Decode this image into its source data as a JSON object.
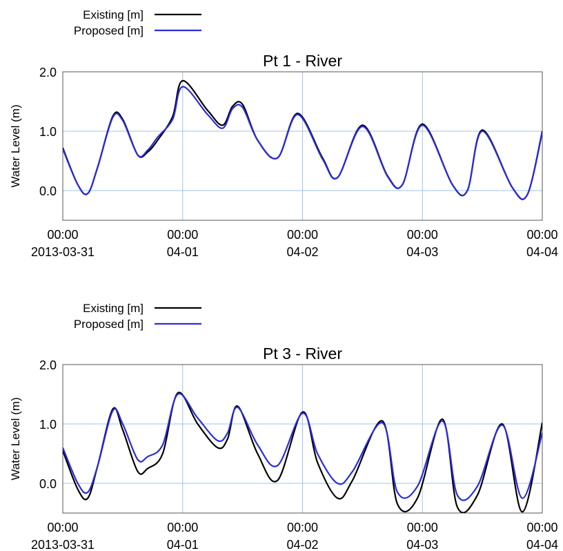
{
  "colors": {
    "existing": "#000000",
    "proposed": "#2a2ae0",
    "grid": "#9ec4ee",
    "frame": "#555555"
  },
  "chart_data": [
    {
      "type": "line",
      "title": "Pt 1 - River",
      "ylabel": "Water Level (m)",
      "xlabel": "",
      "ylim": [
        -0.5,
        2.0
      ],
      "xlim": [
        "2013-03-31 00:00",
        "2013-04-04 00:00"
      ],
      "yticks": [
        0.0,
        1.0,
        2.0
      ],
      "ytick_labels": [
        "0.0",
        "1.0",
        "2.0"
      ],
      "xticks": [
        "2013-03-31 00:00",
        "2013-04-01 00:00",
        "2013-04-02 00:00",
        "2013-04-03 00:00",
        "2013-04-04 00:00"
      ],
      "xtick_labels": [
        [
          "00:00",
          "2013-03-31"
        ],
        [
          "00:00",
          "04-01"
        ],
        [
          "00:00",
          "04-02"
        ],
        [
          "00:00",
          "04-03"
        ],
        [
          "00:00",
          "04-04"
        ]
      ],
      "grid": true,
      "legend_position": "top-left, outside above plot",
      "legend": [
        "Existing    [m]",
        "Proposed [m]"
      ],
      "series": [
        {
          "name": "Existing    [m]",
          "x": [
            "2013-03-31 00:00",
            "2013-03-31 03:00",
            "2013-03-31 05:00",
            "2013-03-31 07:00",
            "2013-03-31 10:00",
            "2013-03-31 12:00",
            "2013-03-31 15:00",
            "2013-03-31 17:00",
            "2013-03-31 19:00",
            "2013-03-31 22:00",
            "2013-04-01 00:00",
            "2013-04-01 05:00",
            "2013-04-01 08:00",
            "2013-04-01 10:00",
            "2013-04-01 12:00",
            "2013-04-01 15:00",
            "2013-04-01 19:00",
            "2013-04-01 23:00",
            "2013-04-02 04:00",
            "2013-04-02 07:00",
            "2013-04-02 12:00",
            "2013-04-02 17:00",
            "2013-04-02 20:00",
            "2013-04-03 00:00",
            "2013-04-03 06:00",
            "2013-04-03 09:00",
            "2013-04-03 12:00",
            "2013-04-03 18:00",
            "2013-04-03 21:00",
            "2013-04-04 00:00"
          ],
          "y": [
            0.72,
            0.1,
            -0.05,
            0.4,
            1.25,
            1.2,
            0.6,
            0.65,
            0.85,
            1.25,
            1.85,
            1.35,
            1.1,
            1.42,
            1.45,
            0.85,
            0.55,
            1.3,
            0.55,
            0.22,
            1.1,
            0.25,
            0.1,
            1.12,
            0.1,
            0.0,
            1.02,
            0.05,
            -0.07,
            1.0
          ]
        },
        {
          "name": "Proposed [m]",
          "x": [
            "2013-03-31 00:00",
            "2013-03-31 03:00",
            "2013-03-31 05:00",
            "2013-03-31 07:00",
            "2013-03-31 10:00",
            "2013-03-31 12:00",
            "2013-03-31 15:00",
            "2013-03-31 17:00",
            "2013-03-31 19:00",
            "2013-03-31 22:00",
            "2013-04-01 00:00",
            "2013-04-01 05:00",
            "2013-04-01 08:00",
            "2013-04-01 10:00",
            "2013-04-01 12:00",
            "2013-04-01 15:00",
            "2013-04-01 19:00",
            "2013-04-01 23:00",
            "2013-04-02 04:00",
            "2013-04-02 07:00",
            "2013-04-02 12:00",
            "2013-04-02 17:00",
            "2013-04-02 20:00",
            "2013-04-03 00:00",
            "2013-04-03 06:00",
            "2013-04-03 09:00",
            "2013-04-03 12:00",
            "2013-04-03 18:00",
            "2013-04-03 21:00",
            "2013-04-04 00:00"
          ],
          "y": [
            0.7,
            0.1,
            -0.05,
            0.4,
            1.23,
            1.18,
            0.6,
            0.68,
            0.9,
            1.2,
            1.75,
            1.28,
            1.05,
            1.38,
            1.4,
            0.85,
            0.55,
            1.28,
            0.53,
            0.22,
            1.08,
            0.24,
            0.1,
            1.1,
            0.1,
            0.0,
            1.0,
            0.05,
            -0.07,
            0.98
          ]
        }
      ]
    },
    {
      "type": "line",
      "title": "Pt 3 - River",
      "ylabel": "Water Level (m)",
      "xlabel": "",
      "ylim": [
        -0.5,
        2.0
      ],
      "xlim": [
        "2013-03-31 00:00",
        "2013-04-04 00:00"
      ],
      "yticks": [
        0.0,
        1.0,
        2.0
      ],
      "ytick_labels": [
        "0.0",
        "1.0",
        "2.0"
      ],
      "xticks": [
        "2013-03-31 00:00",
        "2013-04-01 00:00",
        "2013-04-02 00:00",
        "2013-04-03 00:00",
        "2013-04-04 00:00"
      ],
      "xtick_labels": [
        [
          "00:00",
          "2013-03-31"
        ],
        [
          "00:00",
          "04-01"
        ],
        [
          "00:00",
          "04-02"
        ],
        [
          "00:00",
          "04-03"
        ],
        [
          "00:00",
          "04-04"
        ]
      ],
      "grid": true,
      "legend_position": "top-left, outside above plot",
      "legend": [
        "Existing    [m]",
        "Proposed [m]"
      ],
      "series": [
        {
          "name": "Existing    [m]",
          "x": [
            "2013-03-31 00:00",
            "2013-03-31 03:00",
            "2013-03-31 05:00",
            "2013-03-31 07:00",
            "2013-03-31 10:00",
            "2013-03-31 12:00",
            "2013-03-31 15:00",
            "2013-03-31 17:00",
            "2013-03-31 20:00",
            "2013-03-31 23:00",
            "2013-04-01 03:00",
            "2013-04-01 07:00",
            "2013-04-01 09:00",
            "2013-04-01 11:00",
            "2013-04-01 15:00",
            "2013-04-01 19:00",
            "2013-04-01 24:00",
            "2013-04-02 03:00",
            "2013-04-02 07:00",
            "2013-04-02 10:00",
            "2013-04-02 16:00",
            "2013-04-02 19:00",
            "2013-04-02 23:00",
            "2013-04-03 04:00",
            "2013-04-03 07:00",
            "2013-04-03 11:00",
            "2013-04-03 16:00",
            "2013-04-03 20:00",
            "2013-04-04 00:00"
          ],
          "y": [
            0.55,
            -0.1,
            -0.25,
            0.3,
            1.25,
            0.9,
            0.2,
            0.25,
            0.5,
            1.52,
            1.0,
            0.6,
            0.75,
            1.3,
            0.5,
            0.05,
            1.2,
            0.35,
            -0.25,
            0.05,
            1.05,
            -0.35,
            -0.25,
            1.08,
            -0.4,
            -0.2,
            1.0,
            -0.48,
            1.02
          ]
        },
        {
          "name": "Proposed [m]",
          "x": [
            "2013-03-31 00:00",
            "2013-03-31 03:00",
            "2013-03-31 05:00",
            "2013-03-31 07:00",
            "2013-03-31 10:00",
            "2013-03-31 12:00",
            "2013-03-31 15:00",
            "2013-03-31 17:00",
            "2013-03-31 20:00",
            "2013-03-31 23:00",
            "2013-04-01 03:00",
            "2013-04-01 07:00",
            "2013-04-01 09:00",
            "2013-04-01 11:00",
            "2013-04-01 15:00",
            "2013-04-01 19:00",
            "2013-04-01 24:00",
            "2013-04-02 03:00",
            "2013-04-02 07:00",
            "2013-04-02 10:00",
            "2013-04-02 16:00",
            "2013-04-02 19:00",
            "2013-04-02 23:00",
            "2013-04-03 04:00",
            "2013-04-03 07:00",
            "2013-04-03 11:00",
            "2013-04-03 16:00",
            "2013-04-03 20:00",
            "2013-04-04 00:00"
          ],
          "y": [
            0.6,
            0.0,
            -0.15,
            0.3,
            1.22,
            1.0,
            0.4,
            0.45,
            0.65,
            1.5,
            1.1,
            0.72,
            0.85,
            1.28,
            0.65,
            0.3,
            1.18,
            0.5,
            0.0,
            0.2,
            1.02,
            -0.15,
            -0.05,
            1.05,
            -0.2,
            -0.05,
            0.98,
            -0.25,
            0.85
          ]
        }
      ]
    }
  ]
}
